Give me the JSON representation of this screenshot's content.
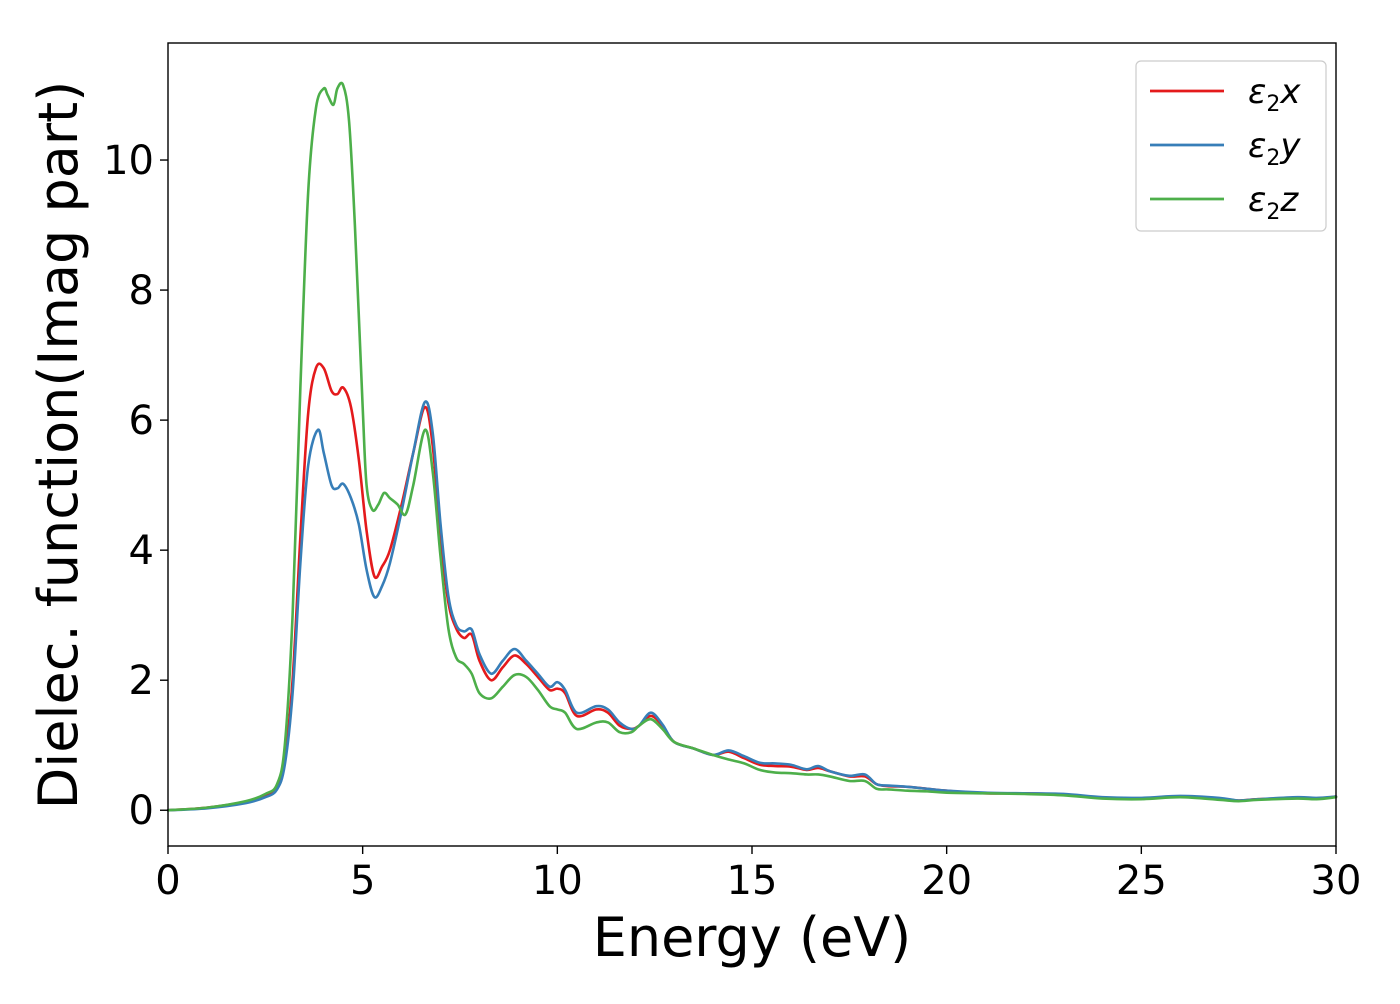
{
  "chart_data": {
    "type": "line",
    "title": "",
    "xlabel": "Energy (eV)",
    "ylabel": "Dielec. function(Imag part)",
    "xlim": [
      0,
      30
    ],
    "ylim": [
      -0.55,
      11.8
    ],
    "xticks": [
      0,
      5,
      10,
      15,
      20,
      25,
      30
    ],
    "yticks": [
      0,
      2,
      4,
      6,
      8,
      10
    ],
    "grid": false,
    "legend_position": "top-right",
    "series": [
      {
        "name": "ε2x",
        "legend": {
          "base": "ε",
          "sub": "2",
          "var": "x"
        },
        "color": "#e41a1c",
        "x": [
          0,
          1,
          2,
          2.5,
          2.8,
          3.0,
          3.2,
          3.4,
          3.6,
          3.8,
          4.0,
          4.2,
          4.35,
          4.5,
          4.7,
          4.9,
          5.1,
          5.3,
          5.5,
          5.7,
          6.0,
          6.3,
          6.6,
          6.8,
          7.0,
          7.2,
          7.4,
          7.6,
          7.8,
          8.0,
          8.3,
          8.6,
          8.9,
          9.2,
          9.5,
          9.8,
          10.0,
          10.2,
          10.5,
          11.0,
          11.3,
          11.6,
          11.9,
          12.1,
          12.4,
          12.7,
          13.0,
          13.5,
          14.0,
          14.4,
          14.8,
          15.2,
          15.6,
          16.0,
          16.4,
          16.7,
          17.0,
          17.5,
          17.9,
          18.2,
          18.5,
          19.0,
          19.5,
          20.0,
          21.0,
          22.0,
          23.0,
          24.0,
          25.0,
          26.0,
          27.0,
          27.5,
          28.0,
          29.0,
          29.5,
          30.0
        ],
        "y": [
          0.0,
          0.04,
          0.13,
          0.22,
          0.36,
          0.8,
          2.0,
          4.2,
          6.1,
          6.8,
          6.8,
          6.45,
          6.4,
          6.5,
          6.2,
          5.4,
          4.3,
          3.6,
          3.75,
          4.0,
          4.7,
          5.5,
          6.2,
          5.6,
          4.2,
          3.2,
          2.8,
          2.65,
          2.7,
          2.3,
          2.0,
          2.2,
          2.38,
          2.25,
          2.05,
          1.85,
          1.87,
          1.8,
          1.45,
          1.55,
          1.5,
          1.3,
          1.25,
          1.3,
          1.45,
          1.3,
          1.05,
          0.95,
          0.85,
          0.9,
          0.8,
          0.7,
          0.68,
          0.67,
          0.62,
          0.65,
          0.6,
          0.52,
          0.52,
          0.4,
          0.37,
          0.36,
          0.33,
          0.3,
          0.26,
          0.26,
          0.24,
          0.19,
          0.18,
          0.21,
          0.18,
          0.15,
          0.17,
          0.19,
          0.18,
          0.21
        ]
      },
      {
        "name": "ε2y",
        "legend": {
          "base": "ε",
          "sub": "2",
          "var": "y"
        },
        "color": "#377eb8",
        "x": [
          0,
          1,
          2,
          2.5,
          2.8,
          3.0,
          3.2,
          3.4,
          3.6,
          3.85,
          4.0,
          4.2,
          4.35,
          4.5,
          4.7,
          4.9,
          5.1,
          5.3,
          5.5,
          5.7,
          6.0,
          6.3,
          6.6,
          6.8,
          7.0,
          7.2,
          7.4,
          7.6,
          7.8,
          8.0,
          8.3,
          8.6,
          8.9,
          9.2,
          9.5,
          9.8,
          10.0,
          10.2,
          10.5,
          11.0,
          11.3,
          11.6,
          11.9,
          12.1,
          12.4,
          12.7,
          13.0,
          13.5,
          14.0,
          14.4,
          14.8,
          15.2,
          15.6,
          16.0,
          16.4,
          16.7,
          17.0,
          17.5,
          17.9,
          18.2,
          18.5,
          19.0,
          19.5,
          20.0,
          21.0,
          22.0,
          23.0,
          24.0,
          25.0,
          26.0,
          27.0,
          27.5,
          28.0,
          29.0,
          29.5,
          30.0
        ],
        "y": [
          0.0,
          0.03,
          0.11,
          0.2,
          0.32,
          0.7,
          1.8,
          3.8,
          5.3,
          5.85,
          5.5,
          5.0,
          4.95,
          5.02,
          4.8,
          4.4,
          3.7,
          3.28,
          3.45,
          3.8,
          4.6,
          5.5,
          6.28,
          5.8,
          4.4,
          3.3,
          2.85,
          2.75,
          2.78,
          2.4,
          2.1,
          2.3,
          2.48,
          2.3,
          2.1,
          1.9,
          1.97,
          1.85,
          1.5,
          1.6,
          1.55,
          1.35,
          1.25,
          1.3,
          1.5,
          1.32,
          1.05,
          0.95,
          0.85,
          0.92,
          0.83,
          0.73,
          0.72,
          0.7,
          0.63,
          0.68,
          0.6,
          0.53,
          0.55,
          0.4,
          0.38,
          0.36,
          0.33,
          0.3,
          0.27,
          0.26,
          0.25,
          0.2,
          0.19,
          0.22,
          0.19,
          0.15,
          0.17,
          0.2,
          0.19,
          0.21
        ]
      },
      {
        "name": "ε2z",
        "legend": {
          "base": "ε",
          "sub": "2",
          "var": "z"
        },
        "color": "#4daf4a",
        "x": [
          0,
          1,
          2,
          2.5,
          2.8,
          3.0,
          3.2,
          3.4,
          3.6,
          3.8,
          4.0,
          4.1,
          4.25,
          4.35,
          4.5,
          4.65,
          4.8,
          5.0,
          5.1,
          5.25,
          5.4,
          5.55,
          5.7,
          5.9,
          6.1,
          6.3,
          6.6,
          6.8,
          7.0,
          7.2,
          7.4,
          7.6,
          7.8,
          8.0,
          8.3,
          8.6,
          8.9,
          9.2,
          9.5,
          9.8,
          10.0,
          10.2,
          10.5,
          11.0,
          11.3,
          11.6,
          11.9,
          12.1,
          12.4,
          12.7,
          13.0,
          13.5,
          14.0,
          14.4,
          14.8,
          15.2,
          15.6,
          16.0,
          16.4,
          16.7,
          17.0,
          17.5,
          17.9,
          18.2,
          18.5,
          19.0,
          19.5,
          20.0,
          21.0,
          22.0,
          23.0,
          24.0,
          25.0,
          26.0,
          27.0,
          27.5,
          28.0,
          29.0,
          29.5,
          30.0
        ],
        "y": [
          0.0,
          0.04,
          0.14,
          0.25,
          0.4,
          1.0,
          3.0,
          6.5,
          9.5,
          10.8,
          11.1,
          11.0,
          10.85,
          11.1,
          11.15,
          10.6,
          9.0,
          6.2,
          5.0,
          4.62,
          4.7,
          4.88,
          4.8,
          4.7,
          4.55,
          5.0,
          5.85,
          5.2,
          3.9,
          2.8,
          2.35,
          2.25,
          2.1,
          1.8,
          1.72,
          1.9,
          2.08,
          2.05,
          1.85,
          1.6,
          1.55,
          1.5,
          1.25,
          1.35,
          1.35,
          1.2,
          1.2,
          1.3,
          1.4,
          1.25,
          1.05,
          0.95,
          0.85,
          0.78,
          0.72,
          0.62,
          0.58,
          0.57,
          0.55,
          0.55,
          0.52,
          0.45,
          0.45,
          0.33,
          0.32,
          0.3,
          0.29,
          0.27,
          0.26,
          0.25,
          0.23,
          0.18,
          0.17,
          0.2,
          0.16,
          0.14,
          0.16,
          0.18,
          0.17,
          0.2
        ]
      }
    ]
  }
}
